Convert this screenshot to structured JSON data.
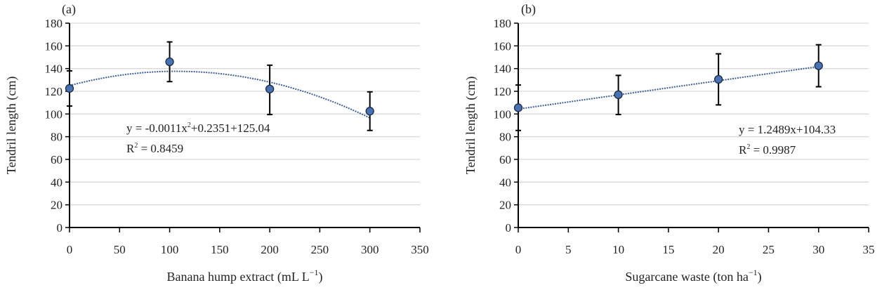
{
  "colors": {
    "marker": "#4a72b0",
    "marker_edge": "#1a2a45",
    "trend": "#3d5f99",
    "grid": "#d9d9d9",
    "axis": "#000000"
  },
  "chart_data": [
    {
      "type": "scatter",
      "panel_label": "(a)",
      "xlabel": "Banana hump extract (mL L",
      "xlabel_sup": "−1",
      "xlabel_end": ")",
      "ylabel": "Tendril length (cm)",
      "xlim": [
        0,
        350
      ],
      "ylim": [
        0,
        180
      ],
      "xticks": [
        0,
        50,
        100,
        150,
        200,
        250,
        300,
        350
      ],
      "yticks": [
        0,
        20,
        40,
        60,
        80,
        100,
        120,
        140,
        160,
        180
      ],
      "grid": true,
      "points": [
        {
          "x": 0,
          "y": 122.5,
          "err_low": 107,
          "err_high": 138
        },
        {
          "x": 100,
          "y": 146,
          "err_low": 128.5,
          "err_high": 163.5
        },
        {
          "x": 200,
          "y": 122,
          "err_low": 99.5,
          "err_high": 143
        },
        {
          "x": 300,
          "y": 102.5,
          "err_low": 85.5,
          "err_high": 119.5
        }
      ],
      "trendline": {
        "kind": "polynomial",
        "coefficients": [
          125.04,
          0.2351,
          -0.0011
        ],
        "x_range": [
          0,
          300
        ]
      },
      "equation": {
        "line1_pre": "y = -0.0011x",
        "line1_sup": "2",
        "line1_post": "+0.2351+125.04",
        "line2_pre": "R",
        "line2_sup": "2",
        "line2_post": " = 0.8459"
      }
    },
    {
      "type": "scatter",
      "panel_label": "(b)",
      "xlabel": "Sugarcane waste (ton ha",
      "xlabel_sup": "−1",
      "xlabel_end": ")",
      "ylabel": "Tendril length (cm)",
      "xlim": [
        0,
        35
      ],
      "ylim": [
        0,
        180
      ],
      "xticks": [
        0,
        5,
        10,
        15,
        20,
        25,
        30,
        35
      ],
      "yticks": [
        0,
        20,
        40,
        60,
        80,
        100,
        120,
        140,
        160,
        180
      ],
      "grid": true,
      "points": [
        {
          "x": 0,
          "y": 105.5,
          "err_low": 85.5,
          "err_high": 125.5
        },
        {
          "x": 10,
          "y": 117,
          "err_low": 99.5,
          "err_high": 134
        },
        {
          "x": 20,
          "y": 130.5,
          "err_low": 108,
          "err_high": 153
        },
        {
          "x": 30,
          "y": 142.5,
          "err_low": 124,
          "err_high": 161
        }
      ],
      "trendline": {
        "kind": "linear",
        "coefficients": [
          104.33,
          1.2489
        ],
        "x_range": [
          0,
          30
        ]
      },
      "equation": {
        "line1_pre": "y = 1.2489x+104.33",
        "line1_sup": "",
        "line1_post": "",
        "line2_pre": "R",
        "line2_sup": "2",
        "line2_post": " = 0.9987"
      }
    }
  ]
}
